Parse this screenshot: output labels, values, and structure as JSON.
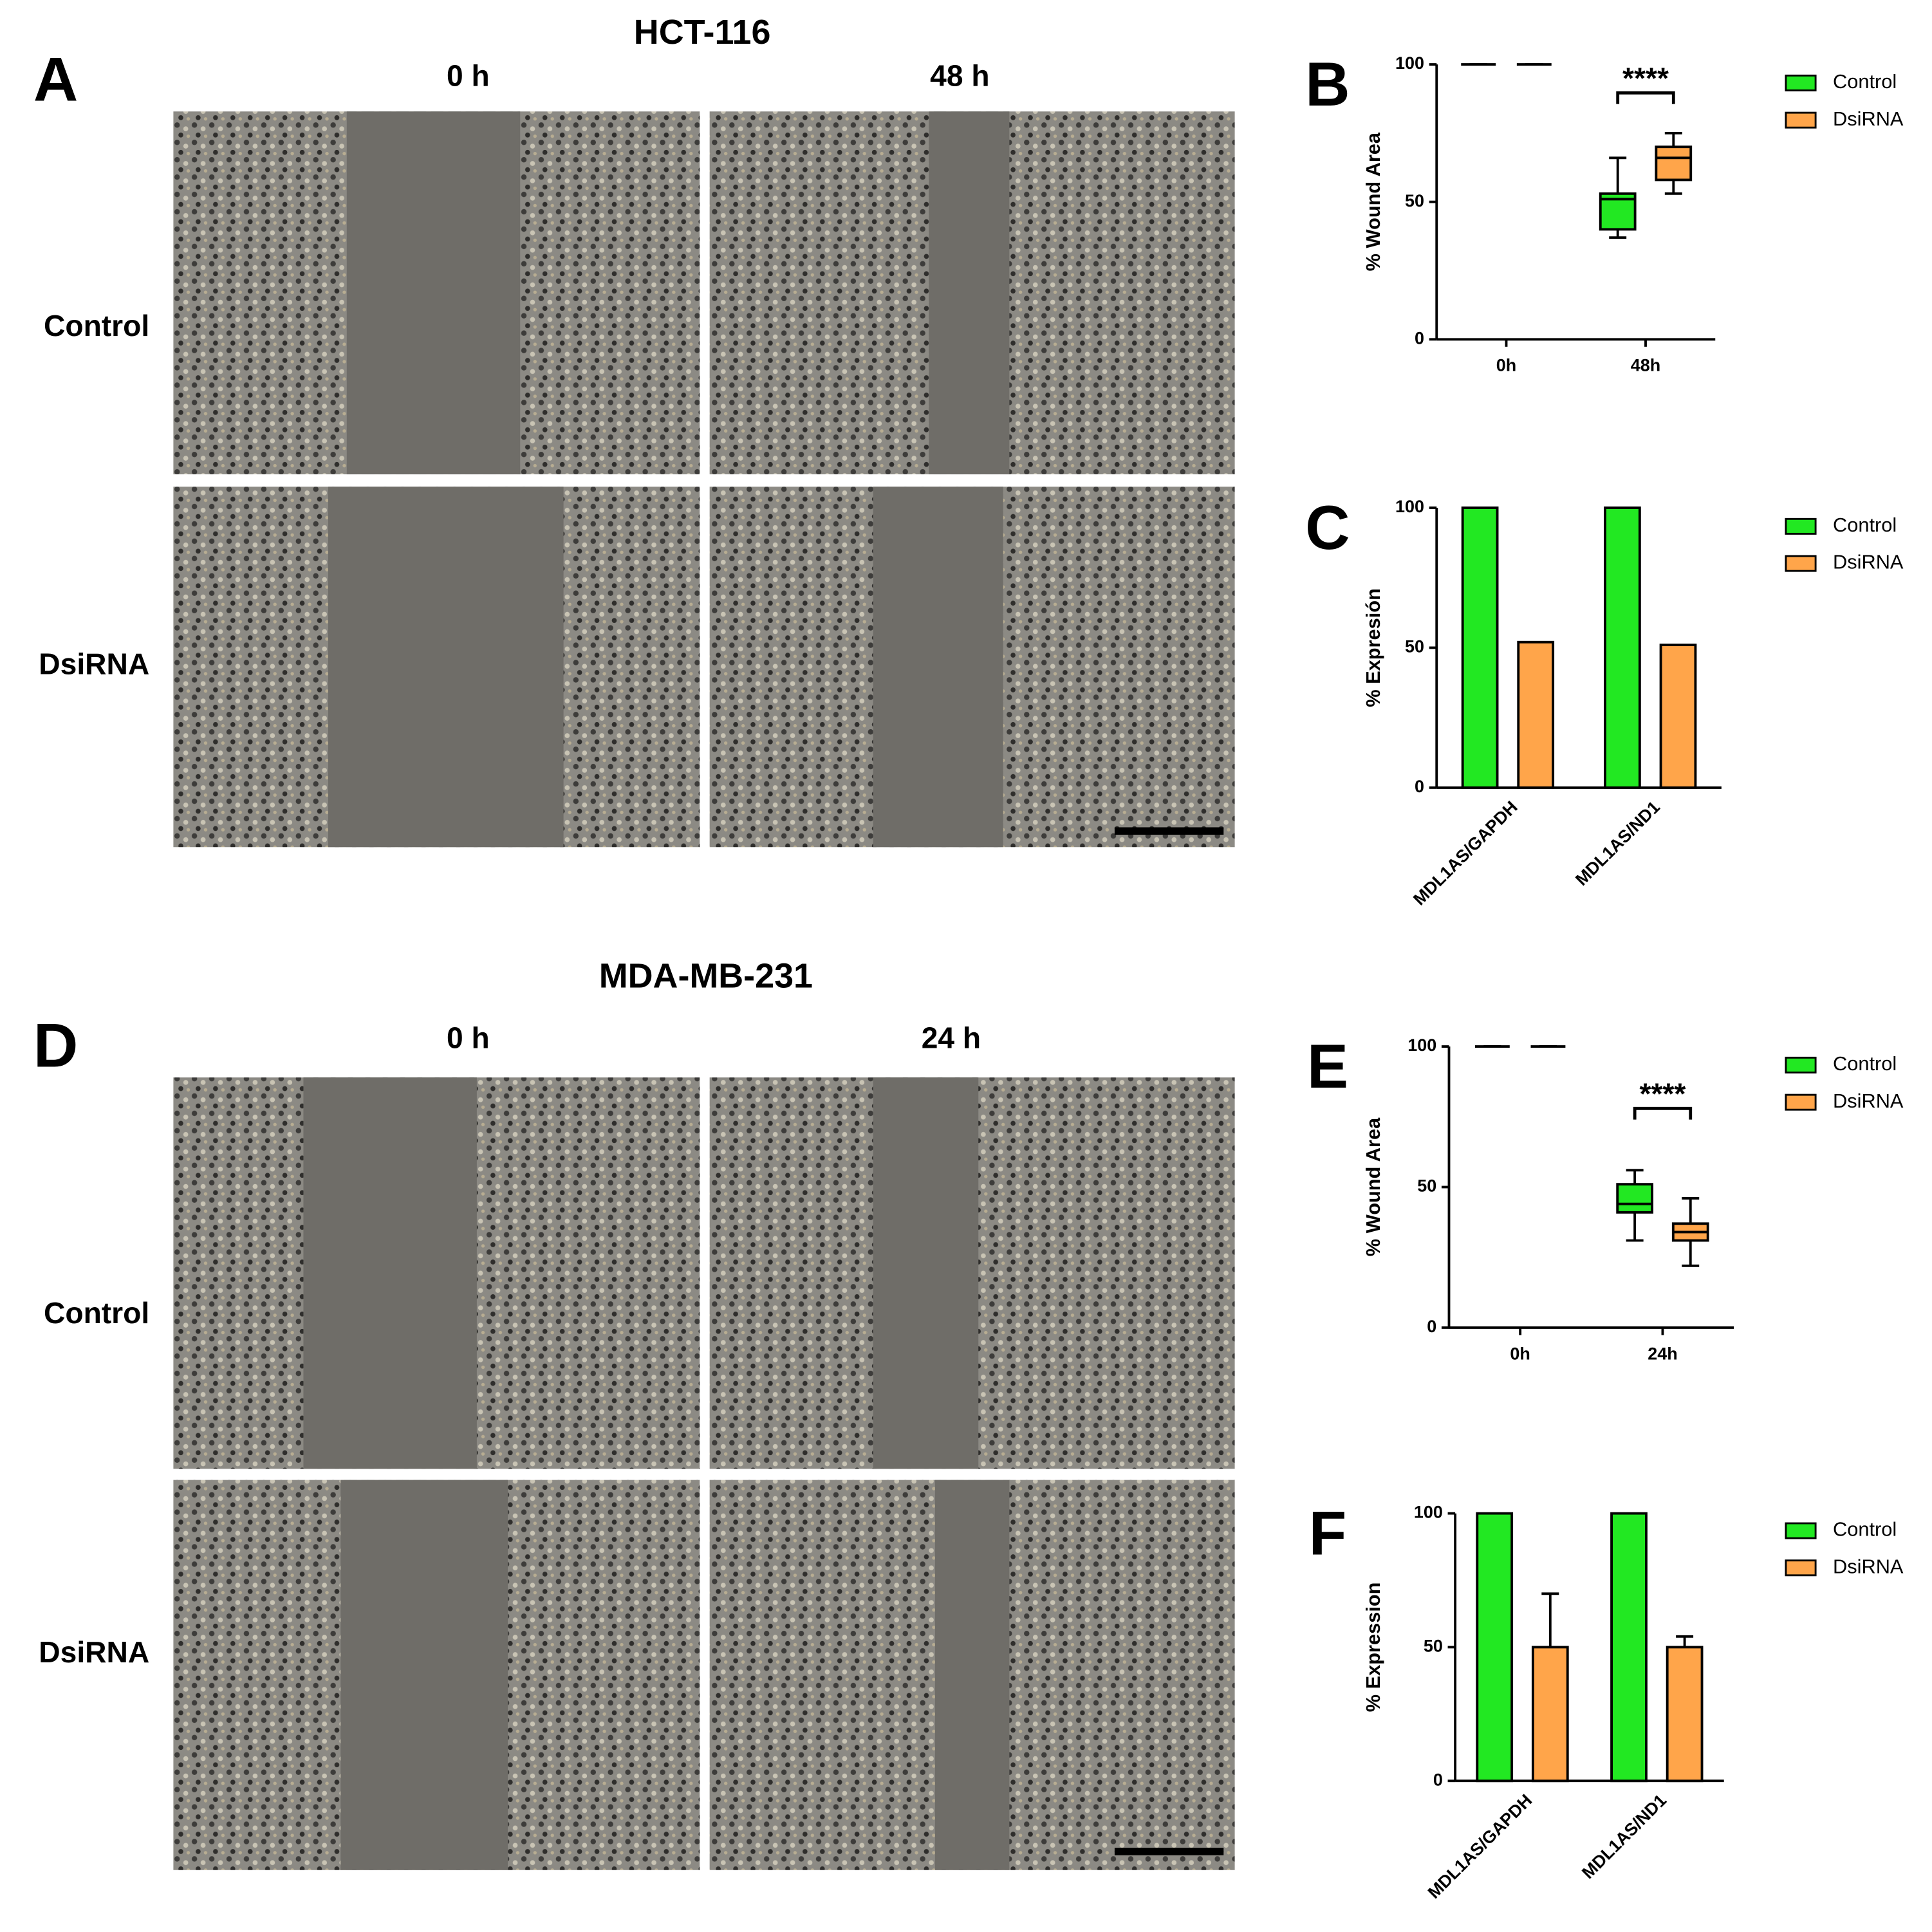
{
  "micrographs": [
    {
      "letter": "A",
      "title": "HCT-116",
      "columns": [
        "0 h",
        "48 h"
      ],
      "rows": [
        "Control",
        "DsiRNA"
      ]
    },
    {
      "letter": "D",
      "title": "MDA-MB-231",
      "columns": [
        "0 h",
        "24 h"
      ],
      "rows": [
        "Control",
        "DsiRNA"
      ]
    }
  ],
  "chart_data": [
    {
      "type": "box",
      "panel": "B",
      "ylabel": "% Wound Area",
      "categories": [
        "0h",
        "48h"
      ],
      "ylim": [
        0,
        100
      ],
      "yticks": [
        0,
        50,
        100
      ],
      "annotation": "****",
      "series": [
        {
          "name": "Control",
          "color": "#22e822",
          "values": [
            {
              "min": 100,
              "q1": 100,
              "median": 100,
              "q3": 100,
              "max": 100
            },
            {
              "min": 37,
              "q1": 40,
              "median": 51,
              "q3": 53,
              "max": 66
            }
          ]
        },
        {
          "name": "DsiRNA",
          "color": "#ffa54a",
          "values": [
            {
              "min": 100,
              "q1": 100,
              "median": 100,
              "q3": 100,
              "max": 100
            },
            {
              "min": 53,
              "q1": 58,
              "median": 66,
              "q3": 70,
              "max": 75
            }
          ]
        }
      ]
    },
    {
      "type": "bar",
      "panel": "C",
      "ylabel": "% Expresión",
      "categories": [
        "MDL1AS/GAPDH",
        "MDL1AS/ND1"
      ],
      "ylim": [
        0,
        100
      ],
      "yticks": [
        0,
        50,
        100
      ],
      "series": [
        {
          "name": "Control",
          "color": "#22e822",
          "values": [
            100,
            100
          ]
        },
        {
          "name": "DsiRNA",
          "color": "#ffa54a",
          "values": [
            52,
            51
          ]
        }
      ]
    },
    {
      "type": "box",
      "panel": "E",
      "ylabel": "% Wound Area",
      "categories": [
        "0h",
        "24h"
      ],
      "ylim": [
        0,
        100
      ],
      "yticks": [
        0,
        50,
        100
      ],
      "annotation": "****",
      "series": [
        {
          "name": "Control",
          "color": "#22e822",
          "values": [
            {
              "min": 100,
              "q1": 100,
              "median": 100,
              "q3": 100,
              "max": 100
            },
            {
              "min": 31,
              "q1": 41,
              "median": 44,
              "q3": 51,
              "max": 56
            }
          ]
        },
        {
          "name": "DsiRNA",
          "color": "#ffa54a",
          "values": [
            {
              "min": 100,
              "q1": 100,
              "median": 100,
              "q3": 100,
              "max": 100
            },
            {
              "min": 22,
              "q1": 31,
              "median": 34,
              "q3": 37,
              "max": 46
            }
          ]
        }
      ]
    },
    {
      "type": "bar",
      "panel": "F",
      "ylabel": "% Expression",
      "categories": [
        "MDL1AS/GAPDH",
        "MDL1AS/ND1"
      ],
      "ylim": [
        0,
        100
      ],
      "yticks": [
        0,
        50,
        100
      ],
      "series": [
        {
          "name": "Control",
          "color": "#22e822",
          "values": [
            100,
            100
          ]
        },
        {
          "name": "DsiRNA",
          "color": "#ffa54a",
          "values": [
            50,
            50
          ],
          "errors": [
            20,
            4
          ]
        }
      ]
    }
  ]
}
